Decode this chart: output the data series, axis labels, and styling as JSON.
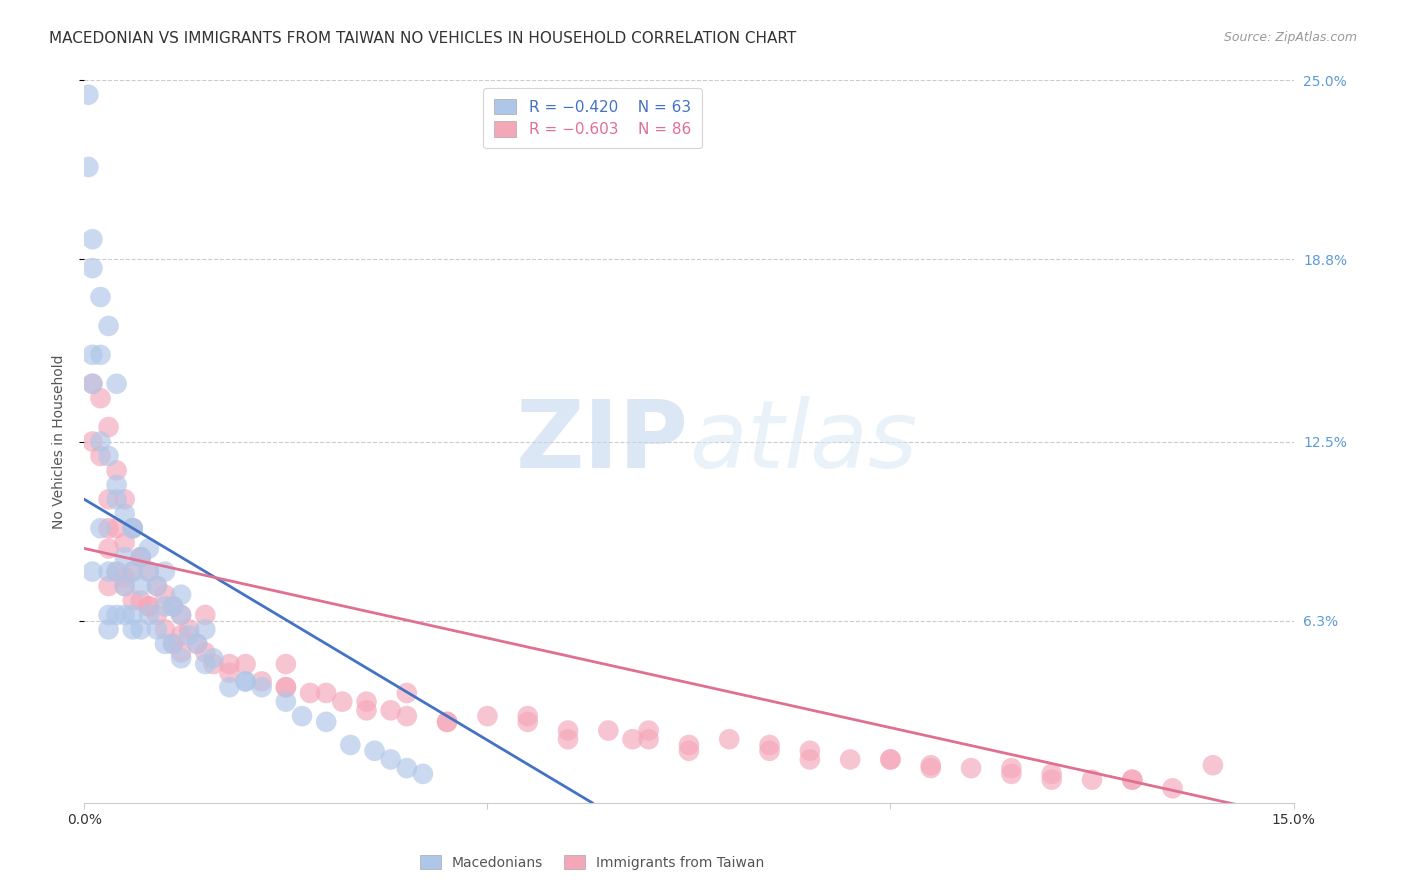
{
  "title": "MACEDONIAN VS IMMIGRANTS FROM TAIWAN NO VEHICLES IN HOUSEHOLD CORRELATION CHART",
  "source": "Source: ZipAtlas.com",
  "ylabel": "No Vehicles in Household",
  "x_min": 0.0,
  "x_max": 0.15,
  "y_min": 0.0,
  "y_max": 0.25,
  "grid_color": "#cccccc",
  "background_color": "#ffffff",
  "macedonian_color": "#aec6e8",
  "taiwan_color": "#f4a7b9",
  "macedonian_line_color": "#4472c4",
  "taiwan_line_color": "#e07090",
  "legend_r1": "R = −0.420",
  "legend_n1": "N = 63",
  "legend_r2": "R = −0.603",
  "legend_n2": "N = 86",
  "label1": "Macedonians",
  "label2": "Immigrants from Taiwan",
  "watermark_zip": "ZIP",
  "watermark_atlas": "atlas",
  "title_fontsize": 11,
  "source_fontsize": 9,
  "axis_label_fontsize": 10,
  "tick_fontsize": 10,
  "legend_fontsize": 11,
  "mac_line_x0": 0.0,
  "mac_line_y0": 0.105,
  "mac_line_x1": 0.063,
  "mac_line_y1": 0.0,
  "tai_line_x0": 0.0,
  "tai_line_y0": 0.088,
  "tai_line_x1": 0.15,
  "tai_line_y1": -0.005,
  "macedonian_x": [
    0.0005,
    0.0005,
    0.001,
    0.001,
    0.001,
    0.001,
    0.002,
    0.002,
    0.002,
    0.003,
    0.003,
    0.003,
    0.003,
    0.003,
    0.004,
    0.004,
    0.004,
    0.004,
    0.005,
    0.005,
    0.005,
    0.005,
    0.006,
    0.006,
    0.006,
    0.006,
    0.007,
    0.007,
    0.007,
    0.008,
    0.008,
    0.009,
    0.009,
    0.01,
    0.01,
    0.011,
    0.011,
    0.012,
    0.012,
    0.013,
    0.014,
    0.015,
    0.016,
    0.018,
    0.02,
    0.022,
    0.025,
    0.027,
    0.03,
    0.033,
    0.036,
    0.038,
    0.04,
    0.042,
    0.001,
    0.002,
    0.004,
    0.006,
    0.008,
    0.01,
    0.012,
    0.015,
    0.02
  ],
  "macedonian_y": [
    0.245,
    0.22,
    0.195,
    0.185,
    0.155,
    0.08,
    0.175,
    0.155,
    0.095,
    0.165,
    0.12,
    0.08,
    0.065,
    0.06,
    0.145,
    0.105,
    0.08,
    0.065,
    0.1,
    0.085,
    0.075,
    0.065,
    0.095,
    0.08,
    0.065,
    0.06,
    0.085,
    0.075,
    0.06,
    0.08,
    0.065,
    0.075,
    0.06,
    0.068,
    0.055,
    0.068,
    0.055,
    0.065,
    0.05,
    0.058,
    0.055,
    0.048,
    0.05,
    0.04,
    0.042,
    0.04,
    0.035,
    0.03,
    0.028,
    0.02,
    0.018,
    0.015,
    0.012,
    0.01,
    0.145,
    0.125,
    0.11,
    0.095,
    0.088,
    0.08,
    0.072,
    0.06,
    0.042
  ],
  "taiwan_x": [
    0.001,
    0.001,
    0.002,
    0.002,
    0.003,
    0.003,
    0.003,
    0.004,
    0.004,
    0.004,
    0.005,
    0.005,
    0.005,
    0.006,
    0.006,
    0.006,
    0.007,
    0.007,
    0.008,
    0.008,
    0.009,
    0.009,
    0.01,
    0.01,
    0.011,
    0.011,
    0.012,
    0.012,
    0.013,
    0.014,
    0.015,
    0.016,
    0.018,
    0.02,
    0.022,
    0.025,
    0.028,
    0.03,
    0.032,
    0.035,
    0.038,
    0.04,
    0.045,
    0.05,
    0.055,
    0.06,
    0.065,
    0.068,
    0.07,
    0.075,
    0.08,
    0.085,
    0.09,
    0.095,
    0.1,
    0.105,
    0.11,
    0.115,
    0.12,
    0.125,
    0.13,
    0.135,
    0.14,
    0.003,
    0.005,
    0.008,
    0.012,
    0.018,
    0.025,
    0.035,
    0.045,
    0.06,
    0.075,
    0.09,
    0.105,
    0.12,
    0.003,
    0.007,
    0.015,
    0.025,
    0.04,
    0.055,
    0.07,
    0.085,
    0.1,
    0.115,
    0.13
  ],
  "taiwan_y": [
    0.145,
    0.125,
    0.14,
    0.12,
    0.13,
    0.095,
    0.075,
    0.115,
    0.095,
    0.08,
    0.105,
    0.09,
    0.075,
    0.095,
    0.08,
    0.07,
    0.085,
    0.07,
    0.08,
    0.068,
    0.075,
    0.065,
    0.072,
    0.06,
    0.068,
    0.055,
    0.065,
    0.052,
    0.06,
    0.055,
    0.052,
    0.048,
    0.045,
    0.048,
    0.042,
    0.04,
    0.038,
    0.038,
    0.035,
    0.035,
    0.032,
    0.03,
    0.028,
    0.03,
    0.028,
    0.025,
    0.025,
    0.022,
    0.022,
    0.02,
    0.022,
    0.018,
    0.018,
    0.015,
    0.015,
    0.013,
    0.012,
    0.01,
    0.01,
    0.008,
    0.008,
    0.005,
    0.013,
    0.088,
    0.078,
    0.068,
    0.058,
    0.048,
    0.04,
    0.032,
    0.028,
    0.022,
    0.018,
    0.015,
    0.012,
    0.008,
    0.105,
    0.085,
    0.065,
    0.048,
    0.038,
    0.03,
    0.025,
    0.02,
    0.015,
    0.012,
    0.008
  ]
}
